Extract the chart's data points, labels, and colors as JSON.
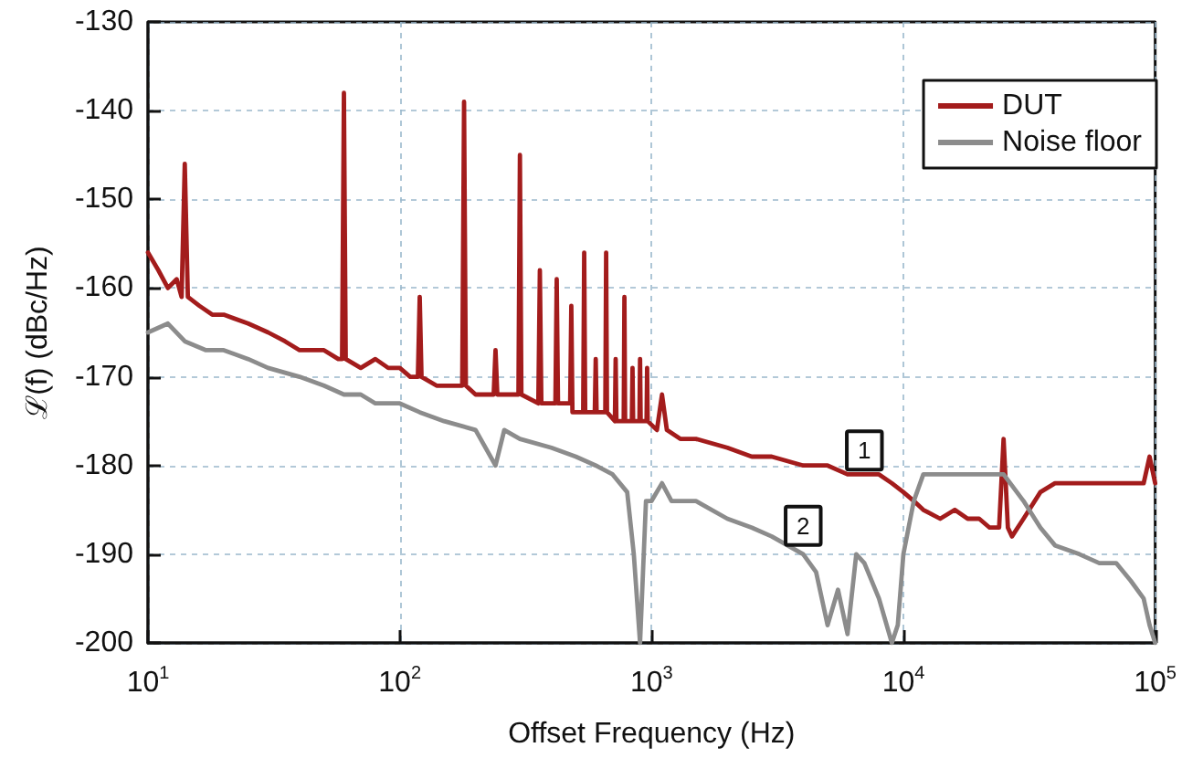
{
  "chart_data": {
    "type": "line",
    "xlabel": "Offset Frequency (Hz)",
    "ylabel": "ℒ(f) (dBc/Hz)",
    "log": "x",
    "xlim": [
      10,
      100000
    ],
    "xticks": [
      {
        "value": 10,
        "label": "10$^{1}$"
      },
      {
        "value": 100,
        "label": "10$^{2}$"
      },
      {
        "value": 1000,
        "label": "10$^{3}$"
      },
      {
        "value": 10000,
        "label": "10$^{4}$"
      },
      {
        "value": 100000,
        "label": "10$^{5}$"
      }
    ],
    "ylim": [
      -200,
      -130
    ],
    "yticks": [
      -200,
      -190,
      -180,
      -170,
      -160,
      -150,
      -140,
      -130
    ],
    "grid": true,
    "legend": "top right",
    "annotations": [
      {
        "text": "1",
        "x": 7000,
        "y": -181.5
      },
      {
        "text": "2",
        "x": 4000,
        "y": -190
      }
    ],
    "series": [
      {
        "name": "DUT",
        "color": "#a31c1c",
        "x": [
          10,
          11,
          12,
          13,
          13.6,
          14,
          14.4,
          16,
          18,
          20,
          25,
          30,
          35,
          40,
          50,
          57,
          59,
          60,
          61,
          70,
          80,
          90,
          100,
          110,
          118,
          120,
          122,
          140,
          160,
          177,
          180,
          183,
          200,
          236,
          240,
          244,
          296,
          300,
          304,
          355,
          360,
          365,
          415,
          420,
          425,
          475,
          480,
          485,
          535,
          540,
          545,
          595,
          600,
          605,
          655,
          660,
          665,
          715,
          720,
          725,
          775,
          780,
          785,
          835,
          840,
          845,
          895,
          900,
          905,
          955,
          960,
          965,
          1050,
          1100,
          1150,
          1300,
          1500,
          2000,
          2500,
          3000,
          4000,
          5000,
          6000,
          7000,
          8000,
          9000,
          10000,
          11000,
          12000,
          14000,
          16000,
          18000,
          20000,
          22000,
          24000,
          25000,
          26000,
          27000,
          30000,
          35000,
          40000,
          50000,
          70000,
          90000,
          95000,
          100000
        ],
        "values": [
          -156,
          -158,
          -160,
          -159,
          -161,
          -146,
          -161,
          -162,
          -163,
          -163,
          -164,
          -165,
          -166,
          -167,
          -167,
          -168,
          -168,
          -138,
          -168,
          -169,
          -168,
          -169,
          -169,
          -170,
          -170,
          -161,
          -170,
          -171,
          -171,
          -171,
          -139,
          -171,
          -172,
          -172,
          -167,
          -172,
          -172,
          -145,
          -172,
          -173,
          -158,
          -173,
          -173,
          -159,
          -173,
          -173,
          -162,
          -174,
          -174,
          -156,
          -174,
          -174,
          -168,
          -174,
          -174,
          -156,
          -174,
          -175,
          -168,
          -175,
          -175,
          -161,
          -175,
          -175,
          -169,
          -175,
          -175,
          -168,
          -175,
          -175,
          -169,
          -175,
          -176,
          -172,
          -176,
          -177,
          -177,
          -178,
          -179,
          -179,
          -180,
          -180,
          -181,
          -181,
          -181,
          -182,
          -183,
          -184,
          -185,
          -186,
          -185,
          -186,
          -186,
          -187,
          -187,
          -177,
          -187,
          -188,
          -186,
          -183,
          -182,
          -182,
          -182,
          -182,
          -179,
          -182
        ]
      },
      {
        "name": "Noise floor",
        "color": "#8c8c8c",
        "x": [
          10,
          12,
          14,
          17,
          20,
          25,
          30,
          40,
          50,
          60,
          70,
          80,
          100,
          120,
          150,
          200,
          240,
          260,
          300,
          400,
          500,
          600,
          700,
          800,
          850,
          900,
          950,
          1000,
          1100,
          1200,
          1500,
          2000,
          2500,
          3000,
          4000,
          4500,
          5000,
          5500,
          6000,
          6500,
          7000,
          8000,
          9000,
          9500,
          10000,
          11000,
          12000,
          15000,
          20000,
          25000,
          30000,
          35000,
          40000,
          50000,
          60000,
          70000,
          80000,
          90000,
          95000,
          100000
        ],
        "values": [
          -165,
          -164,
          -166,
          -167,
          -167,
          -168,
          -169,
          -170,
          -171,
          -172,
          -172,
          -173,
          -173,
          -174,
          -175,
          -176,
          -180,
          -176,
          -177,
          -178,
          -179,
          -180,
          -181,
          -183,
          -190,
          -200,
          -184,
          -184,
          -182,
          -184,
          -184,
          -186,
          -187,
          -188,
          -190,
          -192,
          -198,
          -194,
          -199,
          -190,
          -191,
          -195,
          -200,
          -198,
          -190,
          -184,
          -181,
          -181,
          -181,
          -181,
          -184,
          -187,
          -189,
          -190,
          -191,
          -191,
          -193,
          -195,
          -198,
          -200
        ]
      }
    ]
  }
}
